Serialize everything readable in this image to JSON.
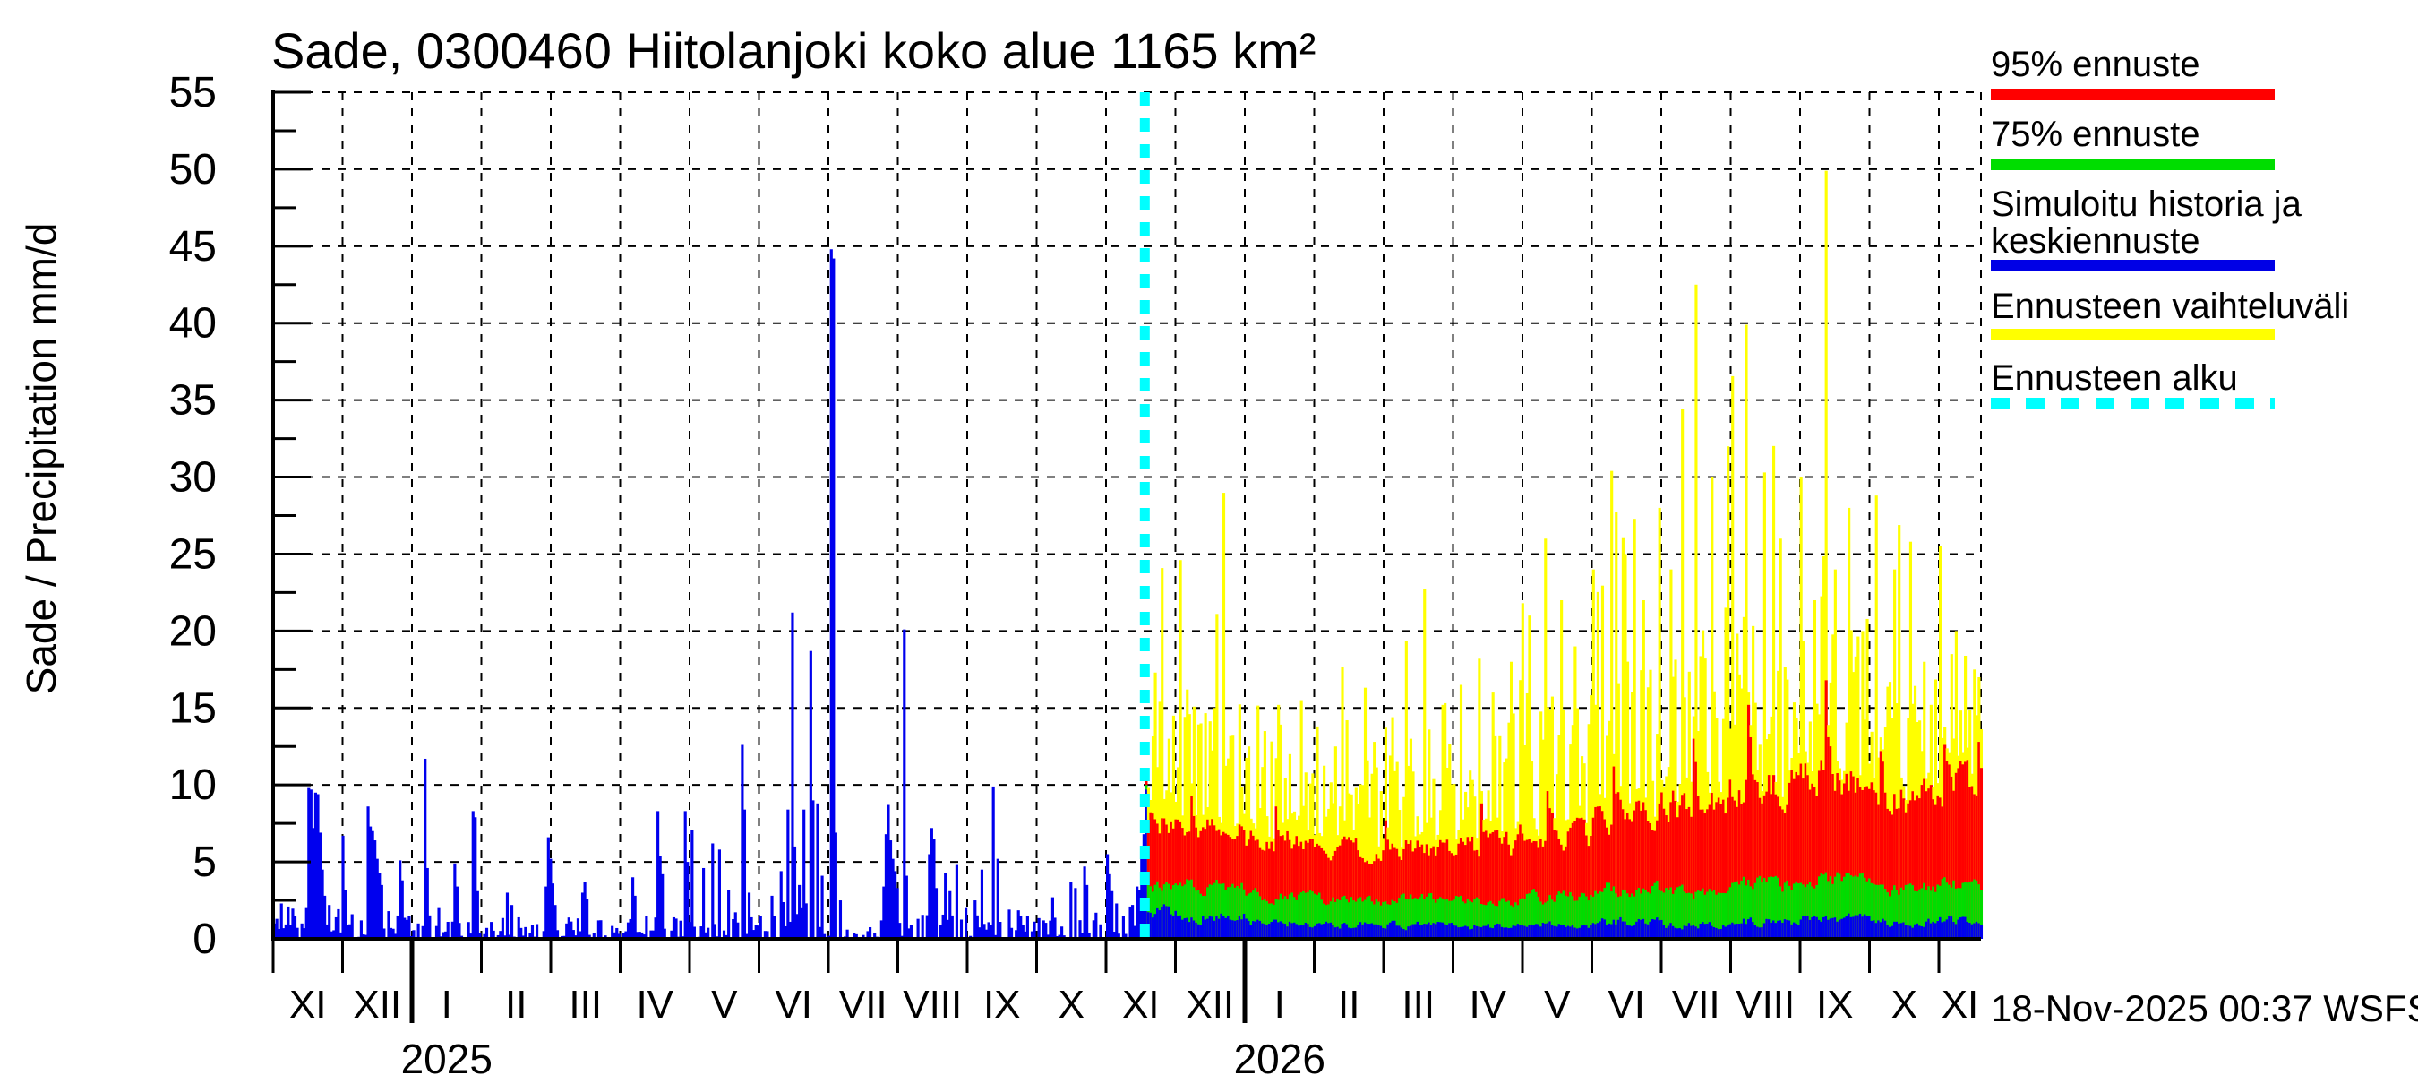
{
  "title": "Sade, 0300460 Hiitolanjoki koko alue 1165 km²",
  "timestamp": "18-Nov-2025 00:37 WSFS-O",
  "y_axis": {
    "label": "Sade / Precipitation  mm/d",
    "tick_values": [
      0,
      5,
      10,
      15,
      20,
      25,
      30,
      35,
      40,
      45,
      50,
      55
    ],
    "minor_tick_step": 2.5,
    "max": 55
  },
  "x_axis": {
    "month_labels": [
      "XI",
      "XII",
      "I",
      "II",
      "III",
      "IV",
      "V",
      "VI",
      "VII",
      "VIII",
      "IX",
      "X",
      "XI",
      "XII",
      "I",
      "II",
      "III",
      "IV",
      "V",
      "VI",
      "VII",
      "VIII",
      "IX",
      "X",
      "XI"
    ],
    "year_labels": [
      {
        "text": "2025",
        "month_cell": 2
      },
      {
        "text": "2026",
        "month_cell": 14
      }
    ]
  },
  "legend": {
    "items": [
      {
        "label_lines": [
          "95% ennuste"
        ],
        "color": "#ff0000",
        "style": "solid"
      },
      {
        "label_lines": [
          "75% ennuste"
        ],
        "color": "#00dd00",
        "style": "solid"
      },
      {
        "label_lines": [
          "Simuloitu historia ja",
          "keskiennuste"
        ],
        "color": "#0000e6",
        "style": "solid"
      },
      {
        "label_lines": [
          "Ennusteen vaihteluväli"
        ],
        "color": "#ffff00",
        "style": "solid"
      },
      {
        "label_lines": [
          "Ennusteen alku"
        ],
        "color": "#00ffff",
        "style": "dashed"
      }
    ]
  },
  "colors": {
    "history_bars": "#0000ee",
    "forecast_median": "#0000ee",
    "forecast_p75": "#00dd00",
    "forecast_p95": "#ff0000",
    "forecast_range": "#ffff00",
    "forecast_start_line": "#00ffff",
    "grid": "#000000",
    "background": "#ffffff"
  },
  "chart_data": {
    "type": "bar",
    "unit": "mm/d",
    "title": "Sade, 0300460 Hiitolanjoki koko alue 1165 km²",
    "station_id": "0300460",
    "area_km2": 1165,
    "x_start": "2024-11-01",
    "forecast_start": "2025-11-18",
    "x_end": "2026-11-19",
    "ylim": [
      0,
      55
    ],
    "grid": {
      "x": "monthly-dashed",
      "y_step": 5
    },
    "legend_position": "top-right",
    "seed": 11,
    "month_day_starts": [
      0,
      30,
      61,
      92,
      120,
      151,
      181,
      212,
      242,
      273,
      304,
      334,
      365,
      395,
      426,
      457,
      485,
      516,
      546,
      577,
      607,
      638,
      669,
      699,
      730,
      749
    ],
    "history": {
      "series_name": "Simuloitu historia",
      "days": 382,
      "baseline_by_month": [
        1.4,
        1.1,
        0.8,
        0.7,
        0.8,
        0.7,
        1.0,
        1.2,
        0.4,
        1.2,
        1.0,
        0.7,
        1.4
      ],
      "events": {
        "0": 1.0,
        "1": 1.3,
        "3": 2.3,
        "6": 2.1,
        "9": 1.5,
        "12": 1.0,
        "14": 2.0,
        "15": 9.8,
        "16": 9.7,
        "17": 7.2,
        "18": 9.5,
        "19": 9.4,
        "20": 6.9,
        "21": 4.5,
        "22": 2.8,
        "24": 2.2,
        "27": 1.4,
        "30": 6.7,
        "31": 3.2,
        "34": 1.6,
        "38": 1.2,
        "41": 8.6,
        "42": 7.3,
        "43": 7.0,
        "44": 6.4,
        "45": 5.2,
        "46": 4.3,
        "47": 3.5,
        "50": 1.8,
        "55": 5.1,
        "56": 3.8,
        "59": 1.5,
        "63": 1.0,
        "66": 11.7,
        "67": 4.6,
        "72": 2.0,
        "79": 4.9,
        "80": 3.4,
        "87": 8.3,
        "88": 7.9,
        "89": 3.1,
        "95": 1.1,
        "102": 3.0,
        "104": 2.2,
        "107": 1.4,
        "113": 0.9,
        "119": 3.4,
        "120": 6.6,
        "121": 5.2,
        "122": 3.6,
        "123": 2.2,
        "128": 1.0,
        "135": 3.0,
        "136": 3.7,
        "137": 2.6,
        "142": 1.2,
        "150": 0.7,
        "157": 4.0,
        "158": 2.8,
        "163": 1.5,
        "168": 8.3,
        "169": 5.4,
        "170": 4.2,
        "175": 1.4,
        "180": 8.3,
        "181": 5.0,
        "183": 7.1,
        "188": 4.6,
        "192": 6.2,
        "195": 5.8,
        "199": 3.2,
        "205": 12.6,
        "206": 8.4,
        "208": 3.0,
        "213": 1.5,
        "218": 2.8,
        "222": 4.4,
        "225": 8.4,
        "227": 21.2,
        "228": 6.0,
        "230": 3.5,
        "232": 8.4,
        "235": 18.7,
        "236": 9.0,
        "238": 8.8,
        "240": 4.1,
        "244": 44.8,
        "245": 44.2,
        "246": 6.9,
        "248": 2.5,
        "251": 0.6,
        "255": 0.3,
        "260": 0.5,
        "263": 0.4,
        "266": 1.2,
        "267": 3.4,
        "268": 6.8,
        "269": 8.7,
        "270": 6.4,
        "271": 5.2,
        "272": 4.4,
        "273": 3.3,
        "276": 20.1,
        "277": 4.1,
        "282": 1.3,
        "287": 5.5,
        "288": 7.2,
        "289": 6.5,
        "290": 3.3,
        "294": 4.3,
        "296": 3.1,
        "299": 4.8,
        "303": 2.0,
        "307": 2.5,
        "310": 4.5,
        "315": 9.9,
        "317": 5.2,
        "322": 1.9,
        "328": 0.9,
        "337": 1.2,
        "341": 2.7,
        "345": 0.8,
        "349": 3.7,
        "351": 3.3,
        "355": 4.7,
        "356": 3.5,
        "360": 1.7,
        "365": 5.5,
        "366": 4.2,
        "367": 3.1,
        "369": 2.3,
        "372": 1.5,
        "375": 2.1,
        "378": 3.4,
        "379": 3.2,
        "380": 5.7,
        "381": 6.8
      }
    },
    "forecast": {
      "days": 367,
      "series": [
        {
          "name": "Ennusteen vaihteluväli",
          "role": "range_max"
        },
        {
          "name": "95% ennuste",
          "role": "p95"
        },
        {
          "name": "75% ennuste",
          "role": "p75"
        },
        {
          "name": "Keskiennuste",
          "role": "median"
        }
      ],
      "first_day": {
        "range_max": 10.7,
        "p95": 10.5,
        "p75": 10.0,
        "median": 9.7
      },
      "monthly_levels": {
        "months": [
          "XI-25",
          "XII-25",
          "I-26",
          "II-26",
          "III-26",
          "IV-26",
          "V-26",
          "VI-26",
          "VII-26",
          "VIII-26",
          "IX-26",
          "X-26",
          "XI-26"
        ],
        "median": [
          1.7,
          1.5,
          1.0,
          0.9,
          0.9,
          0.8,
          0.9,
          1.1,
          0.9,
          1.1,
          1.3,
          1.1,
          1.2
        ],
        "p75": [
          3.6,
          3.6,
          2.9,
          2.6,
          2.6,
          2.5,
          2.8,
          3.3,
          3.0,
          3.6,
          3.9,
          3.4,
          3.6
        ],
        "p95": [
          7.8,
          7.8,
          6.5,
          5.9,
          6.0,
          6.2,
          6.9,
          8.2,
          8.8,
          10.2,
          10.8,
          9.3,
          10.2
        ],
        "range_max": [
          11.0,
          11.5,
          9.5,
          8.8,
          9.2,
          10.0,
          12.0,
          13.5,
          14.5,
          16.0,
          15.5,
          13.5,
          14.0
        ]
      },
      "range_spikes": {
        "6": 15.4,
        "10": 13.0,
        "18": 16.2,
        "24": 14.0,
        "30": 15.0,
        "38": 13.2,
        "45": 12.5,
        "52": 13.5,
        "58": 15.2,
        "63": 12.0,
        "75": 13.8,
        "83": 12.5,
        "88": 14.2,
        "100": 12.8,
        "108": 14.4,
        "116": 13.0,
        "124": 13.6,
        "130": 15.2,
        "138": 16.5,
        "146": 18.2,
        "152": 16.0,
        "160": 18.0,
        "168": 21.0,
        "175": 26.0,
        "182": 22.0,
        "188": 19.0,
        "196": 24.0,
        "204": 30.4,
        "210": 25.0,
        "218": 22.0,
        "225": 28.0,
        "230": 24.0,
        "235": 34.4,
        "241": 42.5,
        "248": 30.0,
        "255": 32.0,
        "263": 39.9,
        "271": 30.3,
        "278": 26.0,
        "287": 30.0,
        "293": 22.0,
        "298": 49.9,
        "302": 24.0,
        "308": 28.0,
        "314": 20.0,
        "320": 28.8,
        "328": 24.0,
        "335": 25.8,
        "341": 18.0,
        "348": 25.5,
        "355": 20.0,
        "363": 17.5
      },
      "p95_peaks": {
        "20": 9.3,
        "57": 8.6,
        "105": 7.7,
        "147": 8.8,
        "176": 9.6,
        "205": 11.2,
        "240": 13.0,
        "264": 15.2,
        "298": 16.8,
        "322": 12.2,
        "350": 12.6,
        "365": 12.8
      }
    }
  }
}
